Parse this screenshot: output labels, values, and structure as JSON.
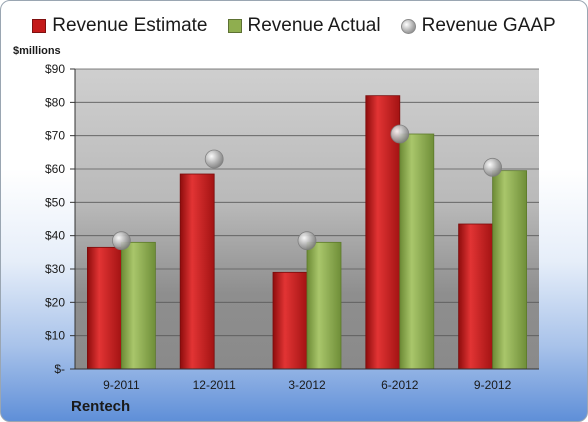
{
  "chart_data": {
    "type": "bar",
    "categories": [
      "9-2011",
      "12-2011",
      "3-2012",
      "6-2012",
      "9-2012"
    ],
    "series": [
      {
        "name": "Revenue Estimate",
        "kind": "bar",
        "color": "#c41a1a",
        "values": [
          36.5,
          58.5,
          29,
          82,
          43.5
        ]
      },
      {
        "name": "Revenue Actual",
        "kind": "bar",
        "color": "#8fae4f",
        "values": [
          38,
          null,
          38,
          70.5,
          59.5
        ]
      },
      {
        "name": "Revenue GAAP",
        "kind": "marker",
        "color": "#b0b0b0",
        "values": [
          38.5,
          63,
          38.5,
          70.5,
          60.5
        ]
      }
    ],
    "ylabel": "$millions",
    "ylim": [
      0,
      90
    ],
    "yticks": [
      0,
      10,
      20,
      30,
      40,
      50,
      60,
      70,
      80,
      90
    ],
    "ytick_labels": [
      "$-",
      "$10",
      "$20",
      "$30",
      "$40",
      "$50",
      "$60",
      "$70",
      "$80",
      "$90"
    ],
    "grid": true,
    "legend_position": "top"
  },
  "company_name": "Rentech"
}
